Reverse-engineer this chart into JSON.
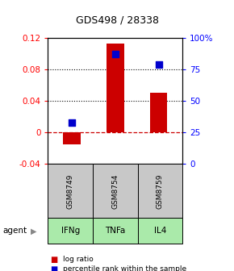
{
  "title": "GDS498 / 28338",
  "samples": [
    "GSM8749",
    "GSM8754",
    "GSM8759"
  ],
  "agents": [
    "IFNg",
    "TNFa",
    "IL4"
  ],
  "log_ratios": [
    -0.015,
    0.113,
    0.05
  ],
  "percentile_ranks_pct": [
    33,
    87,
    79
  ],
  "bar_color": "#cc0000",
  "dot_color": "#0000cc",
  "ylim_left": [
    -0.04,
    0.12
  ],
  "ylim_right": [
    0,
    100
  ],
  "yticks_left": [
    -0.04,
    0.0,
    0.04,
    0.08,
    0.12
  ],
  "yticks_right": [
    0,
    25,
    50,
    75,
    100
  ],
  "ytick_labels_left": [
    "-0.04",
    "0",
    "0.04",
    "0.08",
    "0.12"
  ],
  "ytick_labels_right": [
    "0",
    "25",
    "50",
    "75",
    "100%"
  ],
  "dotted_lines": [
    0.04,
    0.08
  ],
  "zero_line": 0.0,
  "gsm_box_color": "#c8c8c8",
  "agent_box_color": "#aaeaaa",
  "bar_width": 0.4,
  "dot_size": 40,
  "title_fontsize": 9,
  "tick_fontsize": 7.5,
  "label_fontsize": 7.5
}
